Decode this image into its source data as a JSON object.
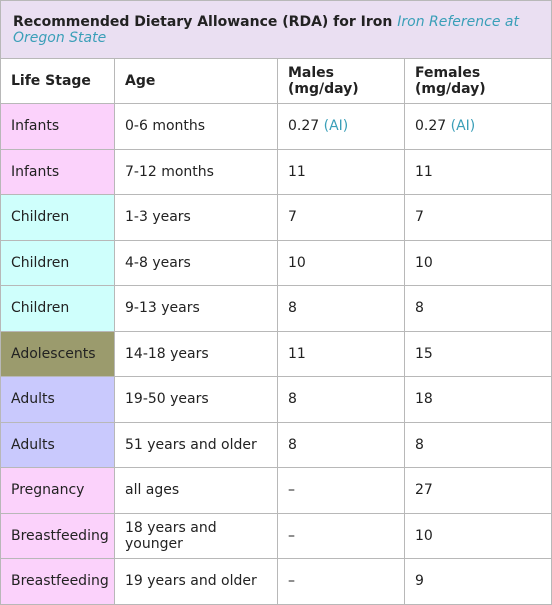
{
  "table": {
    "caption": "Recommended Dietary Allowance (RDA) for Iron",
    "caption_link": "Iron Reference at Oregon State",
    "headers": [
      "Life Stage",
      "Age",
      "Males (mg/day)",
      "Females (mg/day)"
    ],
    "colors": {
      "infants": "#fbd2fb",
      "children": "#cffffc",
      "adolescents": "#9b9b6d",
      "adults": "#c9c9fd",
      "pregnancy": "#fbd2fb",
      "breastfeeding": "#fbd2fb",
      "caption_bg": "#eadff2",
      "link": "#3a9fb8"
    },
    "rows": [
      {
        "stage": "Infants",
        "age": "0-6 months",
        "males": "0.27",
        "males_note": "(AI)",
        "females": "0.27",
        "females_note": "(AI)",
        "group": "infants"
      },
      {
        "stage": "Infants",
        "age": "7-12 months",
        "males": "11",
        "males_note": "",
        "females": "11",
        "females_note": "",
        "group": "infants"
      },
      {
        "stage": "Children",
        "age": "1-3 years",
        "males": "7",
        "males_note": "",
        "females": "7",
        "females_note": "",
        "group": "children"
      },
      {
        "stage": "Children",
        "age": "4-8 years",
        "males": "10",
        "males_note": "",
        "females": "10",
        "females_note": "",
        "group": "children"
      },
      {
        "stage": "Children",
        "age": "9-13 years",
        "males": "8",
        "males_note": "",
        "females": "8",
        "females_note": "",
        "group": "children"
      },
      {
        "stage": "Adolescents",
        "age": "14-18 years",
        "males": "11",
        "males_note": "",
        "females": "15",
        "females_note": "",
        "group": "adolescents"
      },
      {
        "stage": "Adults",
        "age": "19-50 years",
        "males": "8",
        "males_note": "",
        "females": "18",
        "females_note": "",
        "group": "adults"
      },
      {
        "stage": "Adults",
        "age": "51 years and older",
        "males": "8",
        "males_note": "",
        "females": "8",
        "females_note": "",
        "group": "adults"
      },
      {
        "stage": "Pregnancy",
        "age": "all ages",
        "males": "–",
        "males_note": "",
        "females": "27",
        "females_note": "",
        "group": "pregnancy"
      },
      {
        "stage": "Breastfeeding",
        "age": "18 years and younger",
        "males": "–",
        "males_note": "",
        "females": "10",
        "females_note": "",
        "group": "breastfeeding"
      },
      {
        "stage": "Breastfeeding",
        "age": "19 years and older",
        "males": "–",
        "males_note": "",
        "females": "9",
        "females_note": "",
        "group": "breastfeeding"
      }
    ]
  }
}
